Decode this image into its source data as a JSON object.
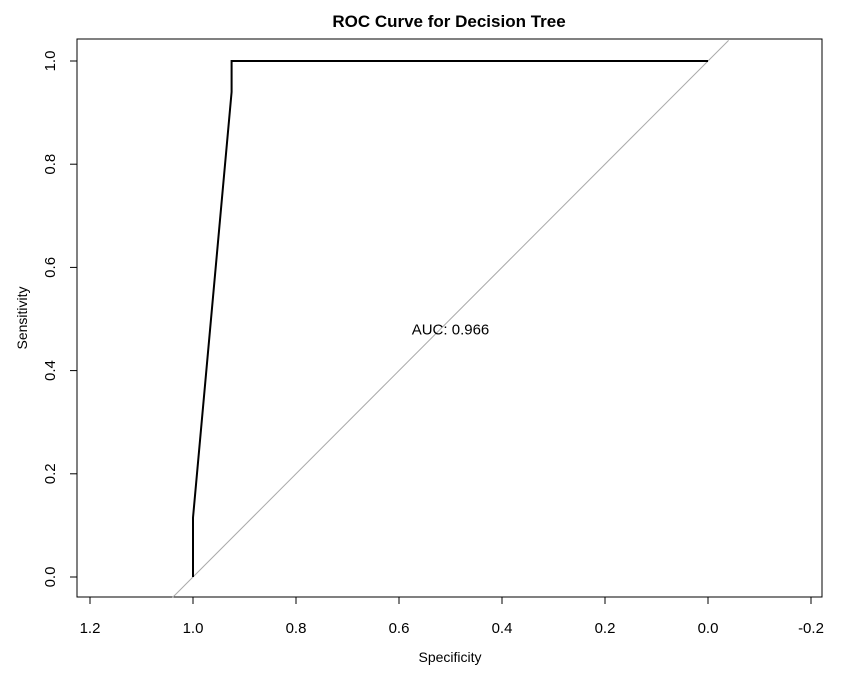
{
  "chart_data": {
    "type": "line",
    "title": "ROC Curve for Decision Tree",
    "xlabel": "Specificity",
    "ylabel": "Sensitivity",
    "xlim": [
      1.2,
      -0.2
    ],
    "ylim": [
      0.0,
      1.0
    ],
    "x_reversed": true,
    "xticks": [
      1.2,
      1.0,
      0.8,
      0.6,
      0.4,
      0.2,
      0.0,
      -0.2
    ],
    "xtick_labels": [
      "1.2",
      "1.0",
      "0.8",
      "0.6",
      "0.4",
      "0.2",
      "0.0",
      "-0.2"
    ],
    "yticks": [
      0.0,
      0.2,
      0.4,
      0.6,
      0.8,
      1.0
    ],
    "ytick_labels": [
      "0.0",
      "0.2",
      "0.4",
      "0.6",
      "0.8",
      "1.0"
    ],
    "grid": false,
    "series": [
      {
        "color": "#000000",
        "x": [
          1.0,
          1.0,
          0.925,
          0.925,
          0.0
        ],
        "y": [
          0.0,
          0.115,
          0.94,
          1.0,
          1.0
        ]
      }
    ],
    "reference_line": {
      "from": [
        1.04,
        -0.04
      ],
      "to": [
        -0.04,
        1.04
      ],
      "color": "#aaaaaa"
    },
    "annotations": [
      {
        "text": "AUC: 0.966",
        "x": 0.5,
        "y": 0.48
      }
    ]
  }
}
